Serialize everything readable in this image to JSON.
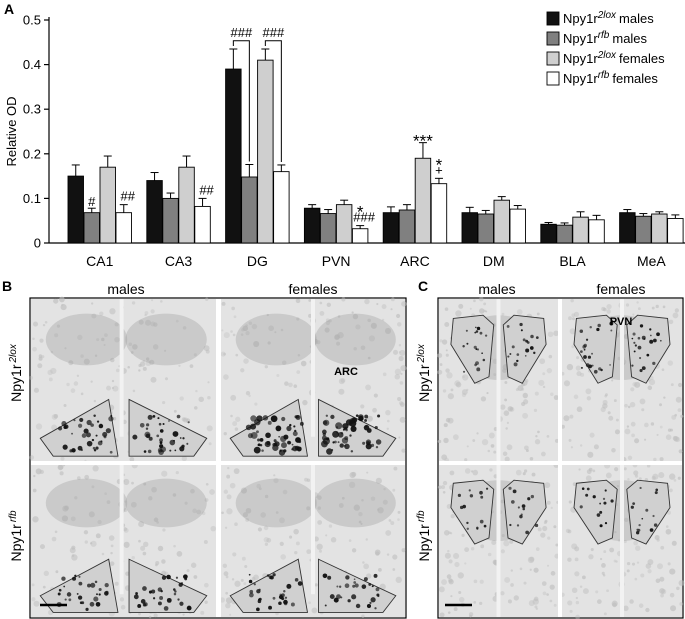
{
  "panels": {
    "A": {
      "letter": "A"
    },
    "B": {
      "letter": "B",
      "columns": [
        "males",
        "females"
      ],
      "rows": [
        {
          "base": "Npy1r",
          "sup": "2lox"
        },
        {
          "base": "Npy1r",
          "sup": "rfb"
        }
      ],
      "region_label": "ARC"
    },
    "C": {
      "letter": "C",
      "columns": [
        "males",
        "females"
      ],
      "rows": [
        {
          "base": "Npy1r",
          "sup": "2lox"
        },
        {
          "base": "Npy1r",
          "sup": "rfb"
        }
      ],
      "region_label": "PVN"
    }
  },
  "colors": {
    "bar_2lox_males": "#111111",
    "bar_rfb_males": "#808080",
    "bar_2lox_females": "#cfcfcf",
    "bar_rfb_females": "#ffffff",
    "micrograph_bg": "#dcdcdc"
  },
  "chart_data": {
    "type": "bar",
    "ylabel": "Relative OD",
    "ylim": [
      0,
      0.5
    ],
    "yticks": [
      0,
      0.1,
      0.2,
      0.3,
      0.4,
      0.5
    ],
    "ytick_labels": [
      "0",
      "0.1",
      "0.2",
      "0.3",
      "0.4",
      "0.5"
    ],
    "categories": [
      "CA1",
      "CA3",
      "DG",
      "PVN",
      "ARC",
      "DM",
      "BLA",
      "MeA"
    ],
    "legend_position": "top-right",
    "series": [
      {
        "name_base": "Npy1r",
        "name_sup": "2lox",
        "name_rest": "males",
        "values": [
          0.15,
          0.14,
          0.39,
          0.078,
          0.068,
          0.068,
          0.042,
          0.068
        ],
        "errors": [
          0.025,
          0.018,
          0.045,
          0.008,
          0.013,
          0.012,
          0.004,
          0.007
        ]
      },
      {
        "name_base": "Npy1r",
        "name_sup": "rfb",
        "name_rest": "males",
        "values": [
          0.068,
          0.1,
          0.148,
          0.066,
          0.074,
          0.065,
          0.04,
          0.06
        ],
        "errors": [
          0.01,
          0.012,
          0.028,
          0.009,
          0.012,
          0.008,
          0.005,
          0.006
        ]
      },
      {
        "name_base": "Npy1r",
        "name_sup": "2lox",
        "name_rest": "females",
        "values": [
          0.17,
          0.17,
          0.41,
          0.086,
          0.19,
          0.096,
          0.058,
          0.065
        ],
        "errors": [
          0.025,
          0.025,
          0.025,
          0.01,
          0.035,
          0.008,
          0.012,
          0.005
        ]
      },
      {
        "name_base": "Npy1r",
        "name_sup": "rfb",
        "name_rest": "females",
        "values": [
          0.068,
          0.082,
          0.16,
          0.032,
          0.133,
          0.076,
          0.052,
          0.055
        ],
        "errors": [
          0.018,
          0.018,
          0.015,
          0.007,
          0.012,
          0.008,
          0.01,
          0.008
        ]
      }
    ],
    "annotations": [
      {
        "category": "CA1",
        "series": 1,
        "text": "#"
      },
      {
        "category": "CA1",
        "series": 3,
        "text": "##"
      },
      {
        "category": "CA3",
        "series": 3,
        "text": "##"
      },
      {
        "category": "DG",
        "series": 0,
        "text": "###",
        "bracket_to_series": 1
      },
      {
        "category": "DG",
        "series": 2,
        "text": "###",
        "bracket_to_series": 3
      },
      {
        "category": "PVN",
        "series": 3,
        "text": "###"
      },
      {
        "category": "PVN",
        "series": 3,
        "text": "*"
      },
      {
        "category": "ARC",
        "series": 2,
        "text": "***"
      },
      {
        "category": "ARC",
        "series": 3,
        "text": "+"
      },
      {
        "category": "ARC",
        "series": 3,
        "text": "*"
      }
    ]
  }
}
